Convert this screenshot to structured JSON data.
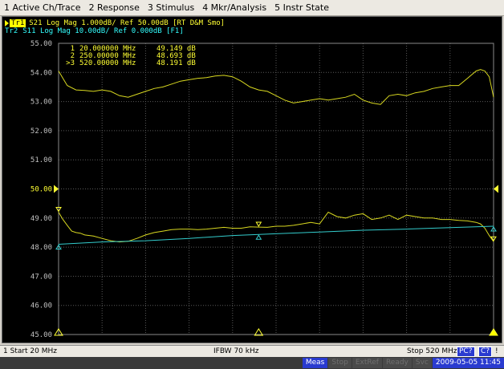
{
  "menu": [
    {
      "label": "1 Active Ch/Trace"
    },
    {
      "label": "2 Response"
    },
    {
      "label": "3 Stimulus"
    },
    {
      "label": "4 Mkr/Analysis"
    },
    {
      "label": "5 Instr State"
    }
  ],
  "traces": [
    {
      "tag": "Tr1",
      "text": "S21 Log Mag 1.000dB/ Ref 50.00dB [RT D&M Smo]",
      "color": "#ffff33"
    },
    {
      "tag": "Tr2",
      "text": "S11 Log Mag 10.00dB/ Ref 0.000dB [F1]",
      "color": "#33ffff"
    }
  ],
  "markers": [
    {
      "id": "1",
      "freq": "20.000000 MHz",
      "value": "49.149 dB"
    },
    {
      "id": "2",
      "freq": "250.00000 MHz",
      "value": "48.693 dB"
    },
    {
      "id": ">3",
      "freq": "520.00000 MHz",
      "value": "48.191 dB"
    }
  ],
  "status": {
    "start": "1 Start 20 MHz",
    "ifbw": "IFBW 70 kHz",
    "stop": "Stop 520 MHz",
    "pc": "PC?",
    "c": "C?",
    "bang": "!"
  },
  "indicators": [
    {
      "label": "Meas",
      "active": true
    },
    {
      "label": "Stop",
      "active": false
    },
    {
      "label": "ExtRef",
      "active": false
    },
    {
      "label": "Ready",
      "active": false
    },
    {
      "label": "Svc",
      "active": false
    }
  ],
  "datetime": "2009-05-05 11:45",
  "chart_data": {
    "type": "line",
    "x_unit": "MHz",
    "xlim": [
      20,
      520
    ],
    "ylim": [
      45,
      55
    ],
    "y_ticks": [
      "55.00",
      "54.00",
      "53.00",
      "52.00",
      "51.00",
      "50.00",
      "49.00",
      "48.00",
      "47.00",
      "46.00",
      "45.00"
    ],
    "reference_level": 50.0,
    "grid": true,
    "series": [
      {
        "name": "Tr1",
        "color": "#d8d820",
        "x": [
          20,
          25,
          30,
          35,
          40,
          45,
          50,
          60,
          70,
          80,
          90,
          100,
          110,
          120,
          130,
          140,
          150,
          160,
          170,
          180,
          190,
          200,
          210,
          220,
          230,
          240,
          250,
          260,
          270,
          280,
          290,
          300,
          310,
          320,
          330,
          340,
          350,
          360,
          370,
          380,
          390,
          400,
          410,
          420,
          430,
          440,
          450,
          460,
          470,
          480,
          490,
          500,
          505,
          510,
          515,
          520
        ],
        "y": [
          49.2,
          48.95,
          48.75,
          48.55,
          48.5,
          48.48,
          48.42,
          48.38,
          48.3,
          48.22,
          48.18,
          48.2,
          48.3,
          48.42,
          48.5,
          48.55,
          48.6,
          48.62,
          48.62,
          48.6,
          48.62,
          48.65,
          48.68,
          48.65,
          48.65,
          48.7,
          48.69,
          48.68,
          48.72,
          48.72,
          48.75,
          48.8,
          48.85,
          48.8,
          49.2,
          49.05,
          49.0,
          49.1,
          49.15,
          48.95,
          49.0,
          49.1,
          48.95,
          49.1,
          49.05,
          49.0,
          49.0,
          48.95,
          48.95,
          48.92,
          48.9,
          48.85,
          48.8,
          48.65,
          48.4,
          48.19
        ]
      },
      {
        "name": "Tr1",
        "color": "#d8d820",
        "x": [
          20,
          25,
          30,
          40,
          50,
          60,
          70,
          80,
          90,
          100,
          110,
          120,
          130,
          140,
          150,
          160,
          170,
          180,
          190,
          200,
          210,
          220,
          230,
          240,
          250,
          260,
          270,
          280,
          290,
          300,
          310,
          320,
          330,
          340,
          350,
          360,
          370,
          380,
          390,
          400,
          410,
          420,
          430,
          440,
          450,
          460,
          470,
          480,
          490,
          500,
          505,
          510,
          515,
          520
        ],
        "y": [
          54.05,
          53.8,
          53.55,
          53.4,
          53.38,
          53.35,
          53.4,
          53.35,
          53.2,
          53.15,
          53.25,
          53.35,
          53.45,
          53.5,
          53.6,
          53.7,
          53.75,
          53.8,
          53.82,
          53.88,
          53.9,
          53.85,
          53.7,
          53.5,
          53.4,
          53.35,
          53.2,
          53.05,
          52.95,
          53.0,
          53.05,
          53.1,
          53.05,
          53.1,
          53.15,
          53.25,
          53.05,
          52.95,
          52.9,
          53.2,
          53.25,
          53.2,
          53.3,
          53.35,
          53.45,
          53.5,
          53.55,
          53.55,
          53.8,
          54.05,
          54.1,
          54.05,
          53.85,
          53.15
        ]
      },
      {
        "name": "Tr2",
        "color": "#33cccc",
        "x": [
          20,
          70,
          120,
          170,
          220,
          270,
          320,
          370,
          420,
          470,
          520
        ],
        "y": [
          48.1,
          48.18,
          48.22,
          48.3,
          48.4,
          48.46,
          48.52,
          48.58,
          48.62,
          48.67,
          48.72
        ]
      }
    ]
  }
}
